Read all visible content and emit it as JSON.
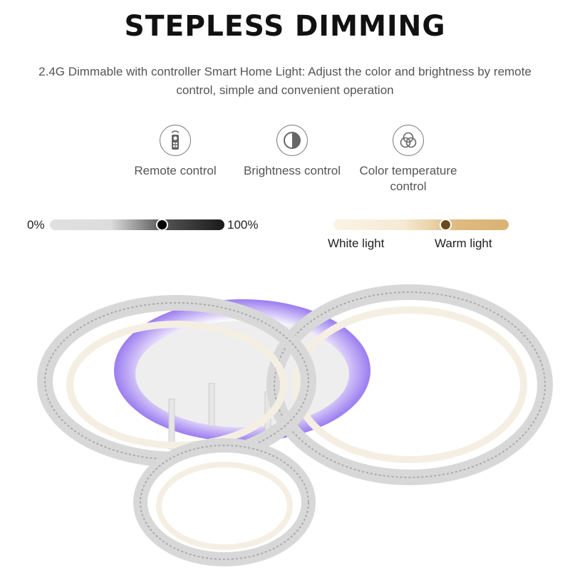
{
  "header": {
    "title": "STEPLESS DIMMING",
    "subtitle": "2.4G Dimmable with controller Smart Home Light: Adjust the color and brightness by remote control, simple and convenient operation"
  },
  "features": [
    {
      "icon": "remote-control-icon",
      "label": "Remote control"
    },
    {
      "icon": "brightness-icon",
      "label": "Brightness control"
    },
    {
      "icon": "color-temperature-icon",
      "label": "Color temperature control"
    }
  ],
  "brightness_slider": {
    "min_label": "0%",
    "max_label": "100%",
    "value": 0.64,
    "colors": [
      "#e0e0e0",
      "#1a1a1a"
    ]
  },
  "color_temp_slider": {
    "left_label": "White light",
    "right_label": "Warm light",
    "value": 0.64,
    "colors": [
      "#fbf3e4",
      "#d9b274"
    ],
    "thumb_color": "#6b4a22"
  },
  "accent": {
    "purple_glow": "#9b7cf0"
  }
}
